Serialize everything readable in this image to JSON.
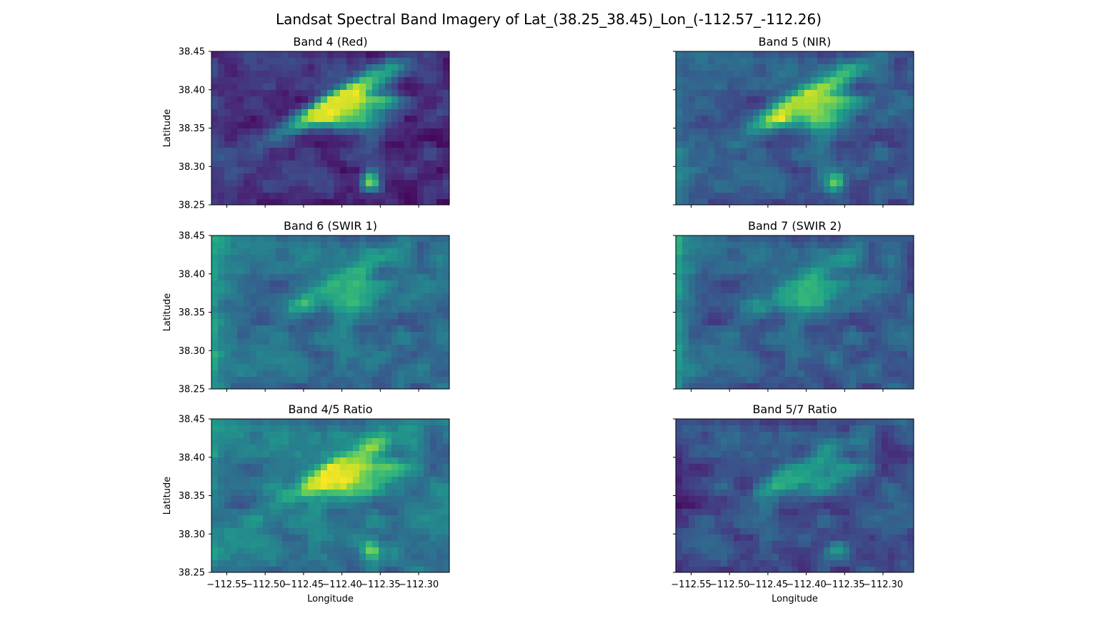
{
  "figure": {
    "suptitle": "Landsat Spectral Band Imagery of Lat_(38.25_38.45)_Lon_(-112.57_-112.26)",
    "colormap": "viridis",
    "colors": {
      "viridis_dark": "#440154",
      "viridis_mid": "#21918c",
      "viridis_bright": "#fde725"
    }
  },
  "chart_data": [
    {
      "type": "heatmap",
      "title": "Band 4 (Red)",
      "xlabel": "",
      "ylabel": "Latitude",
      "xlim": [
        -112.57,
        -112.26
      ],
      "ylim": [
        38.25,
        38.45
      ],
      "xticks": [],
      "yticks": [
        "38.45",
        "38.40",
        "38.35",
        "38.30",
        "38.25"
      ],
      "intensity": {
        "base": 0.14,
        "ridge": 0.8,
        "southern_patch": 0.65,
        "left_edge_brightness": 0.12
      }
    },
    {
      "type": "heatmap",
      "title": "Band 5 (NIR)",
      "xlabel": "",
      "ylabel": "",
      "xlim": [
        -112.57,
        -112.26
      ],
      "ylim": [
        38.25,
        38.45
      ],
      "xticks": [],
      "yticks": [],
      "intensity": {
        "base": 0.28,
        "ridge": 0.6,
        "southern_patch": 0.55,
        "left_edge_brightness": 0.15
      }
    },
    {
      "type": "heatmap",
      "title": "Band 6 (SWIR 1)",
      "xlabel": "",
      "ylabel": "Latitude",
      "xlim": [
        -112.57,
        -112.26
      ],
      "ylim": [
        38.25,
        38.45
      ],
      "xticks": [],
      "yticks": [
        "38.45",
        "38.40",
        "38.35",
        "38.30",
        "38.25"
      ],
      "intensity": {
        "base": 0.36,
        "ridge": 0.28,
        "southern_patch": 0.15,
        "left_edge_brightness": 0.25
      }
    },
    {
      "type": "heatmap",
      "title": "Band 7 (SWIR 2)",
      "xlabel": "",
      "ylabel": "",
      "xlim": [
        -112.57,
        -112.26
      ],
      "ylim": [
        38.25,
        38.45
      ],
      "xticks": [],
      "yticks": [],
      "intensity": {
        "base": 0.3,
        "ridge": 0.32,
        "southern_patch": 0.12,
        "left_edge_brightness": 0.3
      }
    },
    {
      "type": "heatmap",
      "title": "Band 4/5 Ratio",
      "xlabel": "Longitude",
      "ylabel": "Latitude",
      "xlim": [
        -112.57,
        -112.26
      ],
      "ylim": [
        38.25,
        38.45
      ],
      "xticks": [
        "−112.55",
        "−112.50",
        "−112.45",
        "−112.40",
        "−112.35",
        "−112.30"
      ],
      "yticks": [
        "38.45",
        "38.40",
        "38.35",
        "38.30",
        "38.25"
      ],
      "intensity": {
        "base": 0.4,
        "ridge": 0.55,
        "southern_patch": 0.45,
        "left_edge_brightness": 0.1
      }
    },
    {
      "type": "heatmap",
      "title": "Band 5/7 Ratio",
      "xlabel": "Longitude",
      "ylabel": "",
      "xlim": [
        -112.57,
        -112.26
      ],
      "ylim": [
        38.25,
        38.45
      ],
      "xticks": [
        "−112.55",
        "−112.50",
        "−112.45",
        "−112.40",
        "−112.35",
        "−112.30"
      ],
      "yticks": [],
      "intensity": {
        "base": 0.25,
        "ridge": 0.32,
        "southern_patch": 0.3,
        "left_edge_brightness": -0.1
      }
    }
  ]
}
